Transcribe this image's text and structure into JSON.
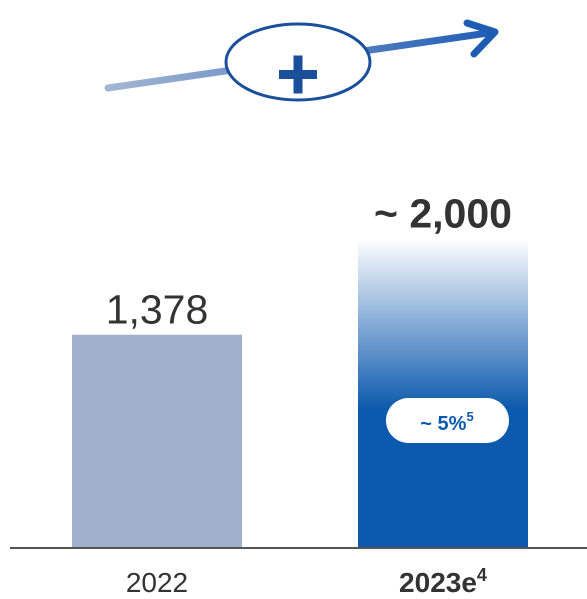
{
  "chart_data": {
    "type": "bar",
    "categories": [
      "2022",
      "2023e"
    ],
    "values": [
      1378,
      2000
    ],
    "data_labels": [
      "1,378",
      "~ 2,000"
    ],
    "category_superscripts": [
      "",
      "4"
    ],
    "ylim": [
      0,
      2100
    ],
    "title": "",
    "xlabel": "",
    "ylabel": "",
    "grid": false,
    "legend": "none",
    "badge": {
      "text": "~ 5%",
      "superscript": "5"
    },
    "trend_symbol": "+",
    "colors": {
      "bar_2022": "#9eb0cc",
      "bar_2023e": "#0c5aad",
      "trend_start": "#a3b6d3",
      "trend_end": "#1e5cb4",
      "oval_border": "#1a4f9c",
      "axis": "#555555",
      "text": "#333333"
    }
  }
}
